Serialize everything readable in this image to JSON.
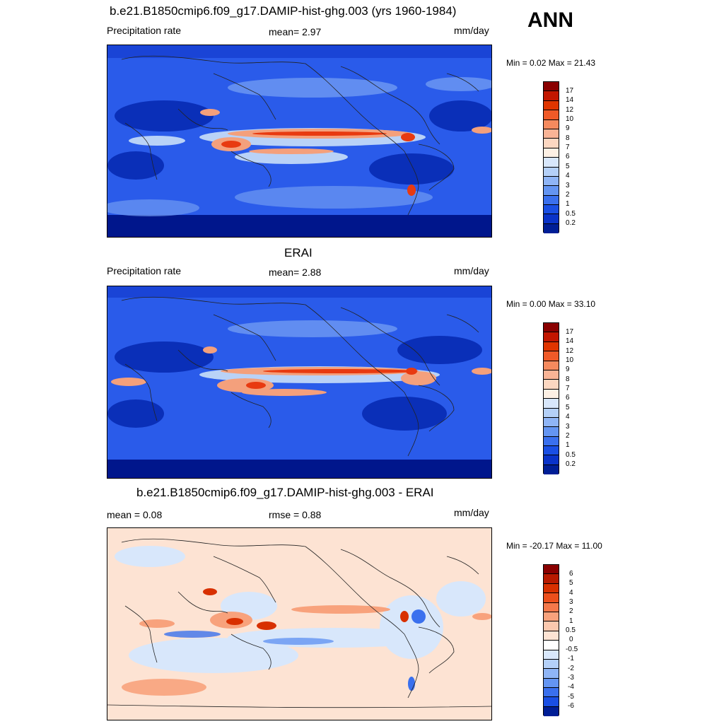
{
  "season": "ANN",
  "panels": [
    {
      "title": "b.e21.B1850cmip6.f09_g17.DAMIP-hist-ghg.003 (yrs 1960-1984)",
      "left_label": "Precipitation rate",
      "center_label": "mean=   2.97",
      "units": "mm/day",
      "minmax": "Min =   0.02 Max =  21.43",
      "colorbar": {
        "labels": [
          "17",
          "14",
          "12",
          "10",
          "9",
          "8",
          "7",
          "6",
          "5",
          "4",
          "3",
          "2",
          "1",
          "0.5",
          "0.2"
        ],
        "colors": [
          "#8a0000",
          "#c21600",
          "#e03500",
          "#f05a28",
          "#f58a5e",
          "#f9b496",
          "#fcd7c1",
          "#fdf0e4",
          "#d8e7fb",
          "#b4d0f8",
          "#8fb5f6",
          "#6495f2",
          "#3a70ee",
          "#1a4fe4",
          "#0a33c9",
          "#001e96"
        ]
      }
    },
    {
      "title": "ERAI",
      "left_label": "Precipitation rate",
      "center_label": "mean=   2.88",
      "units": "mm/day",
      "minmax": "Min =   0.00 Max =  33.10",
      "colorbar": {
        "labels": [
          "17",
          "14",
          "12",
          "10",
          "9",
          "8",
          "7",
          "6",
          "5",
          "4",
          "3",
          "2",
          "1",
          "0.5",
          "0.2"
        ],
        "colors": [
          "#8a0000",
          "#c21600",
          "#e03500",
          "#f05a28",
          "#f58a5e",
          "#f9b496",
          "#fcd7c1",
          "#fdf0e4",
          "#d8e7fb",
          "#b4d0f8",
          "#8fb5f6",
          "#6495f2",
          "#3a70ee",
          "#1a4fe4",
          "#0a33c9",
          "#001e96"
        ]
      }
    },
    {
      "title": "b.e21.B1850cmip6.f09_g17.DAMIP-hist-ghg.003 - ERAI",
      "left_label": "mean =   0.08",
      "center_label": "rmse =   0.88",
      "units": "mm/day",
      "minmax": "Min = -20.17 Max =  11.00",
      "colorbar": {
        "labels": [
          "6",
          "5",
          "4",
          "3",
          "2",
          "1",
          "0.5",
          "0",
          "-0.5",
          "-1",
          "-2",
          "-3",
          "-4",
          "-5",
          "-6"
        ],
        "colors": [
          "#8a0000",
          "#b81a00",
          "#d83000",
          "#ec4f1c",
          "#f4784a",
          "#f8a27c",
          "#fbc8ae",
          "#fde3d3",
          "#ffffff",
          "#d8e7fb",
          "#b4d0f8",
          "#8fb5f6",
          "#6495f2",
          "#3a70ee",
          "#1a4fe4",
          "#001e96"
        ]
      }
    }
  ],
  "map_colors": {
    "precip_base": "#2a5bea",
    "precip_dry": "#0a2fb8",
    "precip_polar": "#00168c",
    "precip_mid": "#6f9af2",
    "precip_light": "#b9d2f7",
    "precip_wet": "#f4a07c",
    "precip_core": "#e83a10",
    "diff_base": "#fde3d3",
    "diff_neg": "#d8e7fb",
    "diff_neg_strong": "#3a70ee",
    "diff_pos": "#f8a27c",
    "diff_pos_strong": "#d83000",
    "coast": "#222222"
  }
}
